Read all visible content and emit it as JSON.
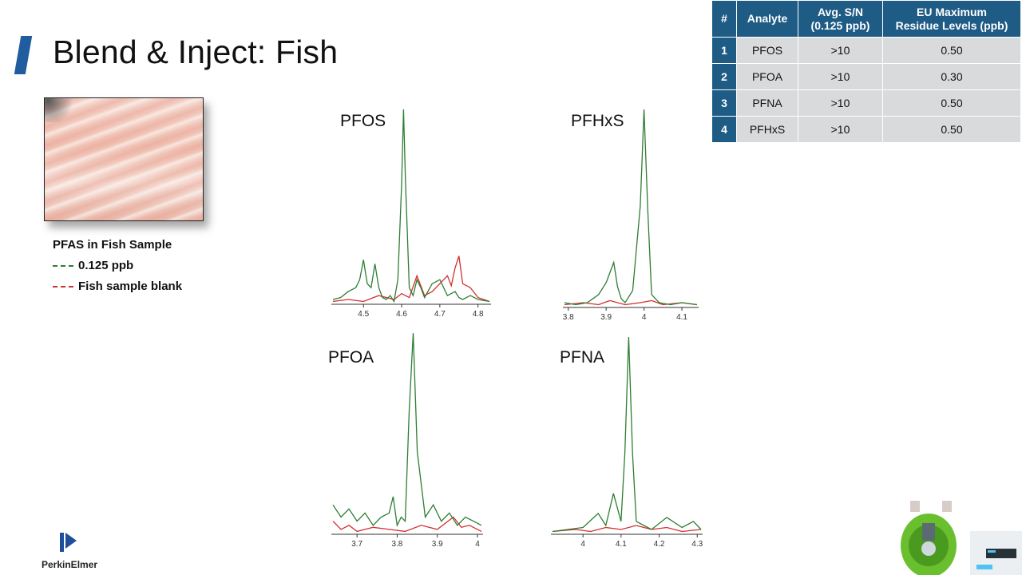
{
  "slide": {
    "title": "Blend & Inject: Fish"
  },
  "legend": {
    "title": "PFAS in Fish Sample",
    "items": [
      {
        "label": "0.125 ppb",
        "color": "#2e7d32"
      },
      {
        "label": "Fish sample blank",
        "color": "#d32f2f"
      }
    ]
  },
  "table": {
    "headers": [
      "#",
      "Analyte",
      "Avg. S/N\n(0.125 ppb)",
      "EU Maximum\nResidue Levels (ppb)"
    ],
    "rows": [
      {
        "num": "1",
        "analyte": "PFOS",
        "sn": ">10",
        "mrl": "0.50"
      },
      {
        "num": "2",
        "analyte": "PFOA",
        "sn": ">10",
        "mrl": "0.30"
      },
      {
        "num": "3",
        "analyte": "PFNA",
        "sn": ">10",
        "mrl": "0.50"
      },
      {
        "num": "4",
        "analyte": "PFHxS",
        "sn": ">10",
        "mrl": "0.50"
      }
    ]
  },
  "logo": {
    "text": "PerkinElmer"
  },
  "colors": {
    "accent": "#1f5d9e",
    "table_header": "#1e5b85",
    "sample": "#2e7d32",
    "blank": "#d32f2f"
  },
  "chart_data": [
    {
      "type": "line",
      "title": "PFOS",
      "xticks": [
        "4.5",
        "4.6",
        "4.7",
        "4.8"
      ],
      "xlim": [
        4.42,
        4.83
      ],
      "ylim": [
        0,
        100
      ],
      "series": [
        {
          "x": [
            4.42,
            4.44,
            4.46,
            4.48,
            4.49,
            4.5,
            4.51,
            4.52,
            4.53,
            4.54,
            4.55,
            4.56,
            4.57,
            4.58,
            4.59,
            4.6,
            4.605,
            4.61,
            4.62,
            4.63,
            4.64,
            4.65,
            4.66,
            4.68,
            4.7,
            4.72,
            4.74,
            4.75,
            4.76,
            4.78,
            4.8,
            4.83
          ],
          "y": [
            2,
            3,
            6,
            8,
            12,
            22,
            10,
            8,
            20,
            8,
            3,
            2,
            4,
            1,
            12,
            60,
            98,
            62,
            8,
            4,
            12,
            8,
            3,
            10,
            12,
            4,
            6,
            3,
            2,
            4,
            2,
            1
          ]
        },
        {
          "x": [
            4.42,
            4.46,
            4.5,
            4.54,
            4.58,
            4.6,
            4.62,
            4.64,
            4.66,
            4.68,
            4.7,
            4.72,
            4.73,
            4.74,
            4.75,
            4.76,
            4.78,
            4.8,
            4.83
          ],
          "y": [
            1,
            2,
            1,
            4,
            2,
            5,
            3,
            14,
            4,
            6,
            10,
            14,
            9,
            18,
            24,
            10,
            8,
            3,
            1
          ]
        }
      ]
    },
    {
      "type": "line",
      "title": "PFHxS",
      "xticks": [
        "3.8",
        "3.9",
        "4",
        "4.1"
      ],
      "xlim": [
        3.79,
        4.14
      ],
      "ylim": [
        0,
        100
      ],
      "series": [
        {
          "x": [
            3.79,
            3.82,
            3.85,
            3.88,
            3.9,
            3.92,
            3.93,
            3.94,
            3.95,
            3.97,
            3.99,
            4.0,
            4.01,
            4.02,
            4.04,
            4.07,
            4.1,
            4.14
          ],
          "y": [
            2,
            1,
            2,
            6,
            12,
            22,
            10,
            4,
            2,
            8,
            50,
            98,
            48,
            6,
            2,
            1,
            2,
            1
          ]
        },
        {
          "x": [
            3.79,
            3.84,
            3.88,
            3.91,
            3.95,
            3.99,
            4.02,
            4.05,
            4.1,
            4.14
          ],
          "y": [
            1,
            2,
            1,
            3,
            1,
            2,
            3,
            1,
            2,
            1
          ]
        }
      ]
    },
    {
      "type": "line",
      "title": "PFOA",
      "xticks": [
        "3.7",
        "3.8",
        "3.9",
        "4"
      ],
      "xlim": [
        3.64,
        4.01
      ],
      "ylim": [
        0,
        100
      ],
      "series": [
        {
          "x": [
            3.64,
            3.66,
            3.68,
            3.7,
            3.72,
            3.74,
            3.76,
            3.78,
            3.79,
            3.8,
            3.81,
            3.82,
            3.83,
            3.84,
            3.85,
            3.87,
            3.89,
            3.91,
            3.93,
            3.95,
            3.97,
            3.99,
            4.01
          ],
          "y": [
            14,
            8,
            12,
            6,
            10,
            4,
            8,
            10,
            18,
            4,
            8,
            6,
            60,
            98,
            40,
            8,
            14,
            6,
            10,
            4,
            8,
            6,
            4
          ]
        },
        {
          "x": [
            3.64,
            3.66,
            3.68,
            3.7,
            3.74,
            3.78,
            3.82,
            3.86,
            3.9,
            3.94,
            3.96,
            3.98,
            4.01
          ],
          "y": [
            6,
            2,
            4,
            1,
            3,
            2,
            1,
            4,
            2,
            8,
            3,
            4,
            1
          ]
        }
      ]
    },
    {
      "type": "line",
      "title": "PFNA",
      "xticks": [
        "4",
        "4.1",
        "4.2",
        "4.3"
      ],
      "xlim": [
        3.92,
        4.31
      ],
      "ylim": [
        0,
        100
      ],
      "series": [
        {
          "x": [
            3.92,
            3.96,
            4.0,
            4.04,
            4.06,
            4.08,
            4.1,
            4.11,
            4.12,
            4.13,
            4.14,
            4.16,
            4.18,
            4.22,
            4.26,
            4.29,
            4.31
          ],
          "y": [
            1,
            2,
            3,
            10,
            4,
            20,
            6,
            40,
            98,
            40,
            6,
            4,
            2,
            8,
            3,
            6,
            2
          ]
        },
        {
          "x": [
            3.92,
            3.98,
            4.02,
            4.06,
            4.1,
            4.14,
            4.18,
            4.22,
            4.26,
            4.31
          ],
          "y": [
            1,
            2,
            1,
            3,
            2,
            4,
            2,
            3,
            1,
            2
          ]
        }
      ]
    }
  ]
}
